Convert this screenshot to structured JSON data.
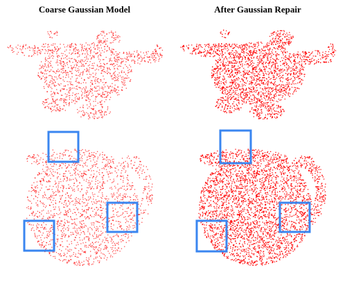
{
  "header": {
    "left_title": "Coarse Gaussian Model",
    "right_title": "After Gaussian Repair"
  }
}
